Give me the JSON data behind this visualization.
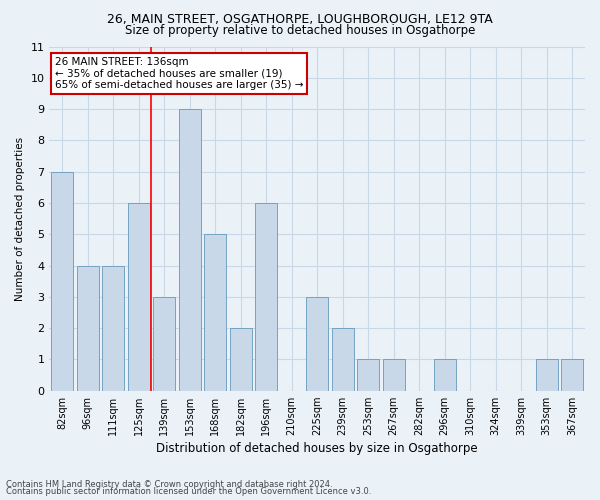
{
  "title1": "26, MAIN STREET, OSGATHORPE, LOUGHBOROUGH, LE12 9TA",
  "title2": "Size of property relative to detached houses in Osgathorpe",
  "xlabel": "Distribution of detached houses by size in Osgathorpe",
  "ylabel": "Number of detached properties",
  "categories": [
    "82sqm",
    "96sqm",
    "111sqm",
    "125sqm",
    "139sqm",
    "153sqm",
    "168sqm",
    "182sqm",
    "196sqm",
    "210sqm",
    "225sqm",
    "239sqm",
    "253sqm",
    "267sqm",
    "282sqm",
    "296sqm",
    "310sqm",
    "324sqm",
    "339sqm",
    "353sqm",
    "367sqm"
  ],
  "values": [
    7,
    4,
    4,
    6,
    3,
    9,
    5,
    2,
    6,
    0,
    3,
    2,
    1,
    1,
    0,
    1,
    0,
    0,
    0,
    1,
    1
  ],
  "bar_color": "#c8d8e8",
  "bar_edge_color": "#6699bb",
  "red_line_x": 3.5,
  "annotation_text": "26 MAIN STREET: 136sqm\n← 35% of detached houses are smaller (19)\n65% of semi-detached houses are larger (35) →",
  "annotation_box_color": "#ffffff",
  "annotation_box_edge": "#cc0000",
  "ylim": [
    0,
    11
  ],
  "yticks": [
    0,
    1,
    2,
    3,
    4,
    5,
    6,
    7,
    8,
    9,
    10,
    11
  ],
  "grid_color": "#c8d8e8",
  "footnote1": "Contains HM Land Registry data © Crown copyright and database right 2024.",
  "footnote2": "Contains public sector information licensed under the Open Government Licence v3.0.",
  "bg_color": "#eaf2f8",
  "plot_bg_color": "#eaf2f8",
  "title1_fontsize": 9.0,
  "title2_fontsize": 8.5,
  "xlabel_fontsize": 8.5,
  "ylabel_fontsize": 7.5,
  "xtick_fontsize": 7.0,
  "ytick_fontsize": 8.0,
  "annot_fontsize": 7.5
}
